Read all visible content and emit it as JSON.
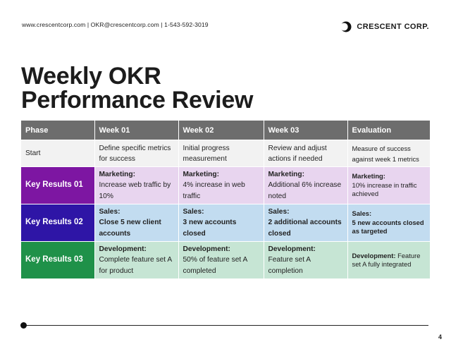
{
  "header": {
    "contact": "www.crescentcorp.com | OKR@crescentcorp.com | 1-543-592-3019",
    "brand_name": "CRESCENT CORP.",
    "logo_icon": "crescent-moon-icon"
  },
  "title": {
    "line1": "Weekly OKR",
    "line2": "Performance Review"
  },
  "table": {
    "headers": [
      "Phase",
      "Week 01",
      "Week 02",
      "Week 03",
      "Evaluation"
    ],
    "start_row": {
      "phase": "Start",
      "week1": "Define specific metrics for success",
      "week2": "Initial progress measurement",
      "week3": "Review and adjust actions if needed",
      "evaluation": "Measure of success against week 1 metrics"
    },
    "kr1": {
      "phase": "Key Results 01",
      "week1_head": "Marketing:",
      "week1": "Increase web traffic by 10%",
      "week2_head": "Marketing:",
      "week2": "4% increase in web traffic",
      "week3_head": "Marketing:",
      "week3": "Additional 6% increase noted",
      "eval_head": "Marketing:",
      "evaluation": "10% increase in traffic achieved"
    },
    "kr2": {
      "phase": "Key Results 02",
      "week1_head": "Sales:",
      "week1": "Close 5 new client accounts",
      "week2_head": "Sales:",
      "week2": "3 new accounts closed",
      "week3_head": "Sales:",
      "week3": "2 additional accounts closed",
      "eval_head": "Sales:",
      "evaluation": "5 new accounts closed as targeted"
    },
    "kr3": {
      "phase": "Key Results 03",
      "week1_head": "Development:",
      "week1": "Complete feature set A for product",
      "week2_head": "Development:",
      "week2": "50% of feature set A completed",
      "week3_head": "Development:",
      "week3": "Feature set A completion",
      "eval_head": "Development:",
      "evaluation": "Feature set A fully integrated"
    },
    "colors": {
      "header": "#6d6d6d",
      "start_row": "#f2f2f2",
      "kr1_phase": "#7d16a2",
      "kr1_row": "#e8d5ef",
      "kr2_phase": "#2e15a6",
      "kr2_row": "#c2dcf0",
      "kr3_phase": "#1f9149",
      "kr3_row": "#c6e5d4"
    }
  },
  "footer": {
    "page_number": "4"
  }
}
